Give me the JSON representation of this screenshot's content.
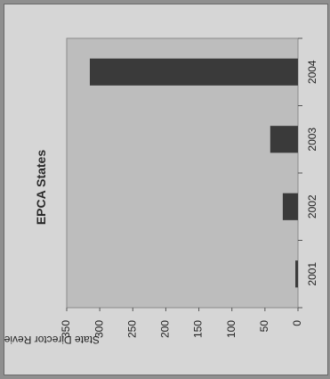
{
  "chart_data": {
    "type": "bar",
    "orientation": "horizontal",
    "title": "EPCA States",
    "xlabel": "",
    "ylabel": "State Director Reviews",
    "categories": [
      "2001",
      "2002",
      "2003",
      "2004"
    ],
    "values": [
      4,
      23,
      42,
      315
    ],
    "ylim": [
      0,
      350
    ],
    "ticks": [
      "0",
      "50",
      "100",
      "150",
      "200",
      "250",
      "300",
      "350"
    ],
    "grid": false,
    "colors": {
      "bar": "#3a3a3a",
      "plot_area": "#bdbdbd",
      "page": "#d6d6d6",
      "frame": "#8f8f8f"
    }
  }
}
